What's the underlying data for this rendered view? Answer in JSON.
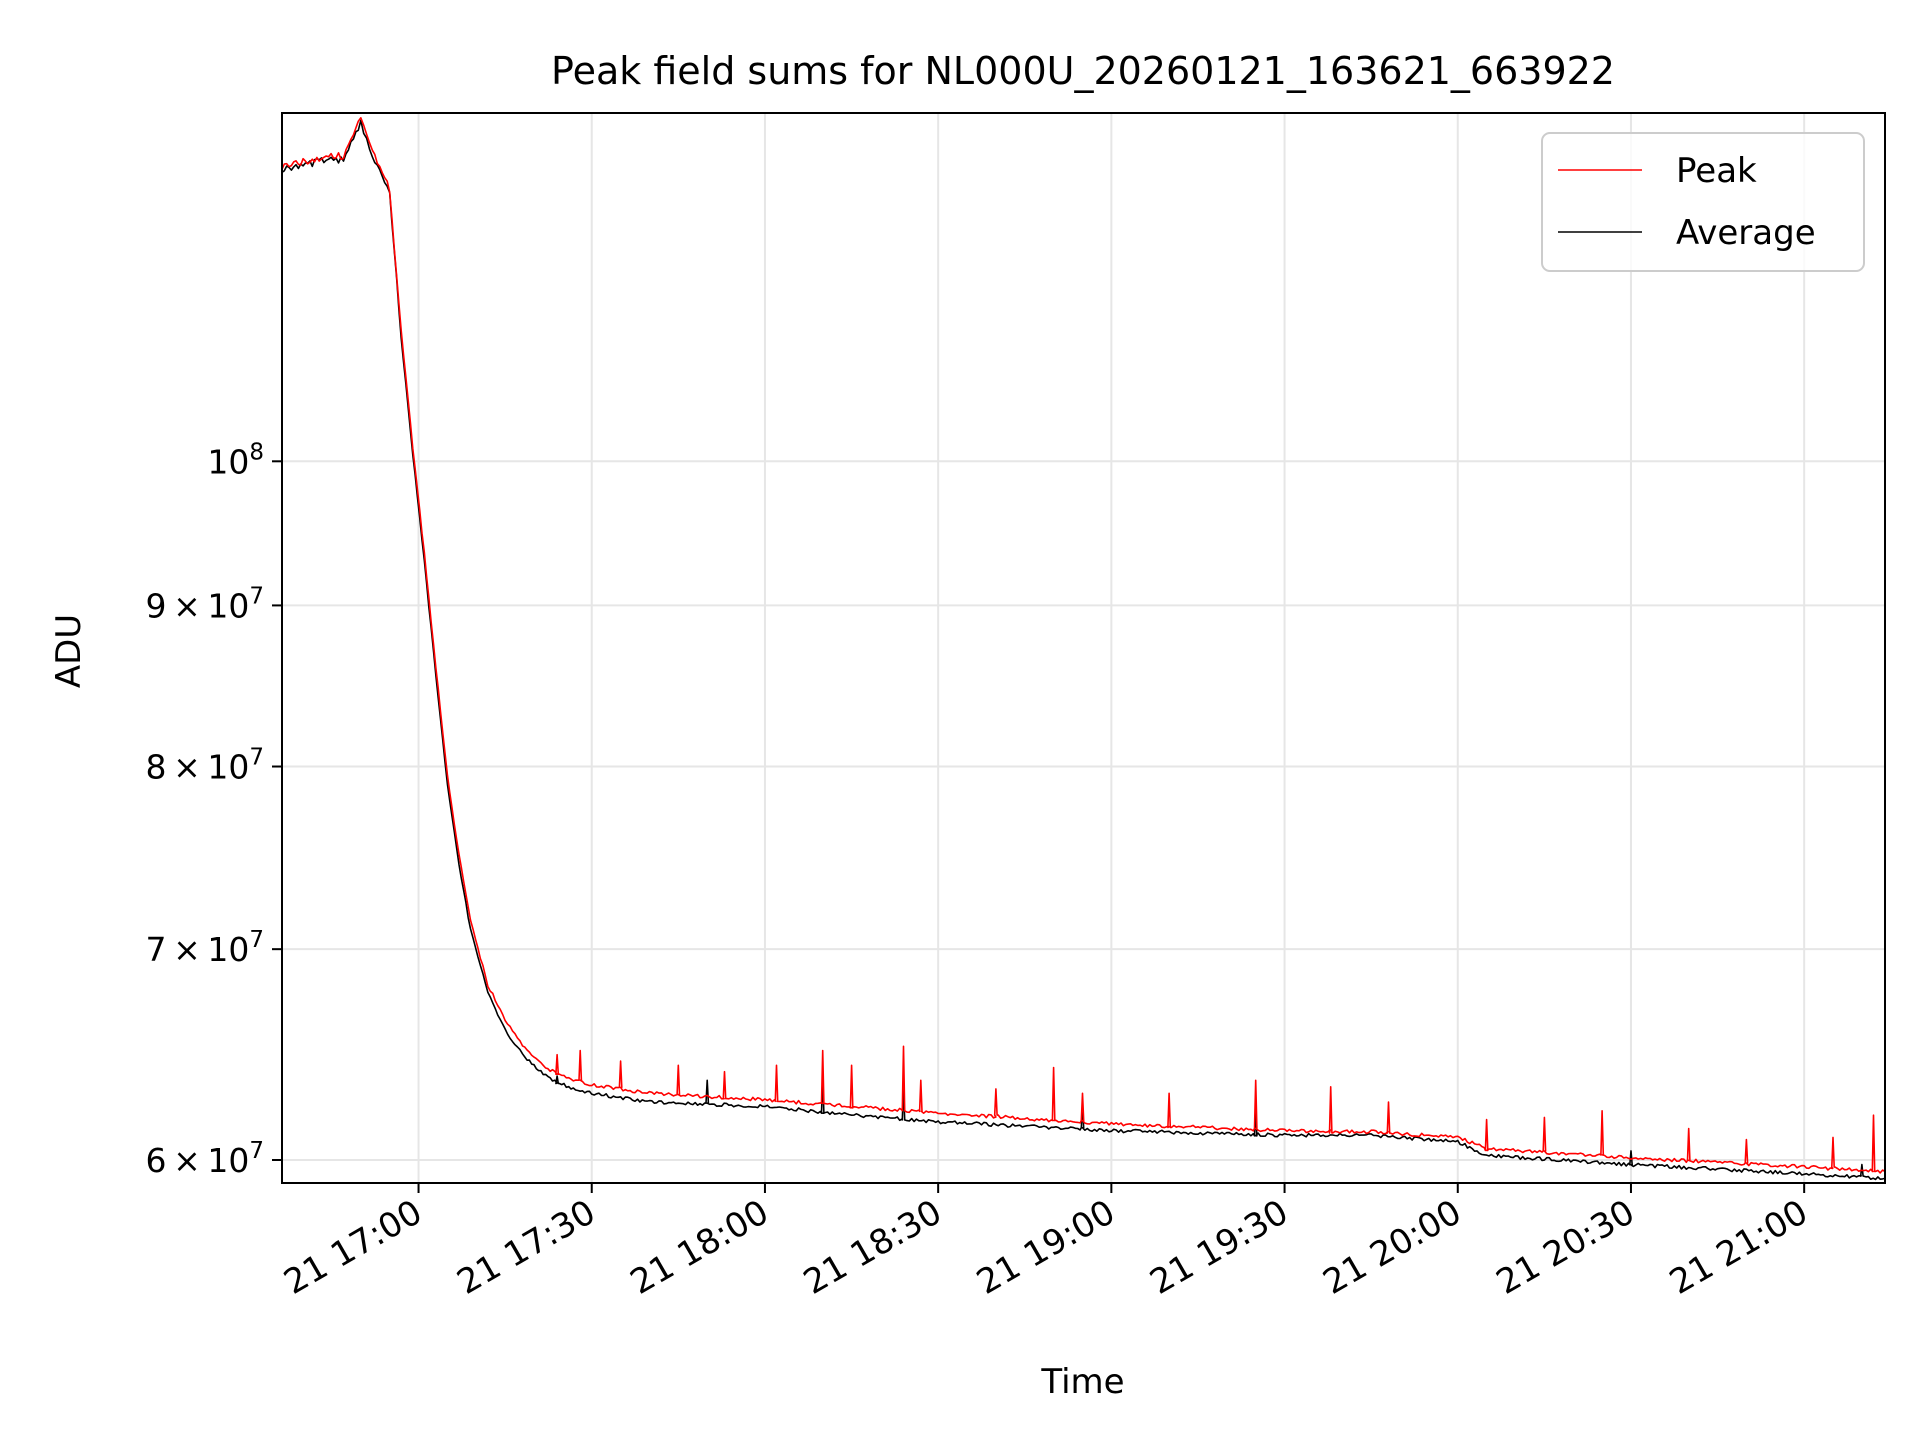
{
  "chart_data": {
    "type": "line",
    "title": "Peak field sums for NL000U_20260121_163621_663922",
    "xlabel": "Time",
    "ylabel": "ADU",
    "xlim": [
      "2026-01-21 16:36:21",
      "2026-01-21 21:14:00"
    ],
    "ylim": [
      59000000,
      129000000
    ],
    "yscale": "log",
    "grid": true,
    "legend_position": "upper-right",
    "x_ticks": [
      {
        "value": "2026-01-21 17:00",
        "label": "21 17:00"
      },
      {
        "value": "2026-01-21 17:30",
        "label": "21 17:30"
      },
      {
        "value": "2026-01-21 18:00",
        "label": "21 18:00"
      },
      {
        "value": "2026-01-21 18:30",
        "label": "21 18:30"
      },
      {
        "value": "2026-01-21 19:00",
        "label": "21 19:00"
      },
      {
        "value": "2026-01-21 19:30",
        "label": "21 19:30"
      },
      {
        "value": "2026-01-21 20:00",
        "label": "21 20:00"
      },
      {
        "value": "2026-01-21 20:30",
        "label": "21 20:30"
      },
      {
        "value": "2026-01-21 21:00",
        "label": "21 21:00"
      }
    ],
    "y_ticks": [
      {
        "value": 60000000,
        "mantissa": "6",
        "exponent": "7",
        "label": "6×10^7"
      },
      {
        "value": 70000000,
        "mantissa": "7",
        "exponent": "7",
        "label": "7×10^7"
      },
      {
        "value": 80000000,
        "mantissa": "8",
        "exponent": "7",
        "label": "8×10^7"
      },
      {
        "value": 90000000,
        "mantissa": "9",
        "exponent": "7",
        "label": "9×10^7"
      },
      {
        "value": 100000000,
        "mantissa": "",
        "exponent": "8",
        "label": "10^8"
      }
    ],
    "series": [
      {
        "name": "Peak",
        "color": "#ff0000",
        "x": [
          "2026-01-21 16:36:21",
          "2026-01-21 16:40",
          "2026-01-21 16:44",
          "2026-01-21 16:47",
          "2026-01-21 16:50",
          "2026-01-21 16:51",
          "2026-01-21 16:52",
          "2026-01-21 16:55",
          "2026-01-21 16:57",
          "2026-01-21 16:59",
          "2026-01-21 17:01",
          "2026-01-21 17:03",
          "2026-01-21 17:05",
          "2026-01-21 17:07",
          "2026-01-21 17:09",
          "2026-01-21 17:12",
          "2026-01-21 17:15",
          "2026-01-21 17:18",
          "2026-01-21 17:22",
          "2026-01-21 17:26",
          "2026-01-21 17:30",
          "2026-01-21 17:40",
          "2026-01-21 18:00",
          "2026-01-21 18:15",
          "2026-01-21 18:30",
          "2026-01-21 19:00",
          "2026-01-21 19:30",
          "2026-01-21 19:45",
          "2026-01-21 20:00",
          "2026-01-21 20:05",
          "2026-01-21 20:30",
          "2026-01-21 21:00",
          "2026-01-21 21:14"
        ],
        "values": [
          124000000,
          124500000,
          125000000,
          125000000,
          128500000,
          127000000,
          125500000,
          122000000,
          110000000,
          101000000,
          93500000,
          86000000,
          79500000,
          75000000,
          71500000,
          68200000,
          66500000,
          65200000,
          64200000,
          63700000,
          63400000,
          63000000,
          62700000,
          62400000,
          62100000,
          61600000,
          61300000,
          61250000,
          61000000,
          60500000,
          60100000,
          59700000,
          59500000
        ],
        "spikes": [
          {
            "x": "2026-01-21 17:24",
            "value": 64800000
          },
          {
            "x": "2026-01-21 17:28",
            "value": 65000000
          },
          {
            "x": "2026-01-21 17:35",
            "value": 64500000
          },
          {
            "x": "2026-01-21 17:45",
            "value": 64300000
          },
          {
            "x": "2026-01-21 17:53",
            "value": 64000000
          },
          {
            "x": "2026-01-21 18:02",
            "value": 64300000
          },
          {
            "x": "2026-01-21 18:10",
            "value": 65000000
          },
          {
            "x": "2026-01-21 18:15",
            "value": 64300000
          },
          {
            "x": "2026-01-21 18:24",
            "value": 65200000
          },
          {
            "x": "2026-01-21 18:27",
            "value": 63600000
          },
          {
            "x": "2026-01-21 18:40",
            "value": 63200000
          },
          {
            "x": "2026-01-21 18:50",
            "value": 64200000
          },
          {
            "x": "2026-01-21 18:55",
            "value": 63000000
          },
          {
            "x": "2026-01-21 19:10",
            "value": 63000000
          },
          {
            "x": "2026-01-21 19:25",
            "value": 63600000
          },
          {
            "x": "2026-01-21 19:38",
            "value": 63300000
          },
          {
            "x": "2026-01-21 19:48",
            "value": 62600000
          },
          {
            "x": "2026-01-21 20:05",
            "value": 61800000
          },
          {
            "x": "2026-01-21 20:15",
            "value": 61900000
          },
          {
            "x": "2026-01-21 20:25",
            "value": 62200000
          },
          {
            "x": "2026-01-21 20:40",
            "value": 61400000
          },
          {
            "x": "2026-01-21 20:50",
            "value": 60900000
          },
          {
            "x": "2026-01-21 21:05",
            "value": 61000000
          },
          {
            "x": "2026-01-21 21:12",
            "value": 62000000
          }
        ]
      },
      {
        "name": "Average",
        "color": "#000000",
        "x": [
          "2026-01-21 16:36:21",
          "2026-01-21 16:40",
          "2026-01-21 16:44",
          "2026-01-21 16:47",
          "2026-01-21 16:50",
          "2026-01-21 16:51",
          "2026-01-21 16:52",
          "2026-01-21 16:55",
          "2026-01-21 16:57",
          "2026-01-21 16:59",
          "2026-01-21 17:01",
          "2026-01-21 17:03",
          "2026-01-21 17:05",
          "2026-01-21 17:07",
          "2026-01-21 17:09",
          "2026-01-21 17:12",
          "2026-01-21 17:15",
          "2026-01-21 17:18",
          "2026-01-21 17:22",
          "2026-01-21 17:26",
          "2026-01-21 17:30",
          "2026-01-21 17:40",
          "2026-01-21 18:00",
          "2026-01-21 18:15",
          "2026-01-21 18:30",
          "2026-01-21 19:00",
          "2026-01-21 19:30",
          "2026-01-21 19:45",
          "2026-01-21 20:00",
          "2026-01-21 20:05",
          "2026-01-21 20:30",
          "2026-01-21 21:00",
          "2026-01-21 21:14"
        ],
        "values": [
          123800000,
          124200000,
          124600000,
          124600000,
          128000000,
          126500000,
          125000000,
          121500000,
          109500000,
          100500000,
          93000000,
          85500000,
          79000000,
          74500000,
          71000000,
          67800000,
          66000000,
          64800000,
          63800000,
          63300000,
          63000000,
          62600000,
          62400000,
          62000000,
          61700000,
          61300000,
          61100000,
          61100000,
          60800000,
          60200000,
          59800000,
          59400000,
          59200000
        ],
        "spikes": [
          {
            "x": "2026-01-21 17:24",
            "value": 63800000
          },
          {
            "x": "2026-01-21 17:50",
            "value": 63600000
          },
          {
            "x": "2026-01-21 18:10",
            "value": 63700000
          },
          {
            "x": "2026-01-21 18:24",
            "value": 63300000
          },
          {
            "x": "2026-01-21 18:55",
            "value": 62300000
          },
          {
            "x": "2026-01-21 19:25",
            "value": 62100000
          },
          {
            "x": "2026-01-21 20:30",
            "value": 60400000
          },
          {
            "x": "2026-01-21 21:10",
            "value": 59800000
          }
        ]
      }
    ]
  }
}
